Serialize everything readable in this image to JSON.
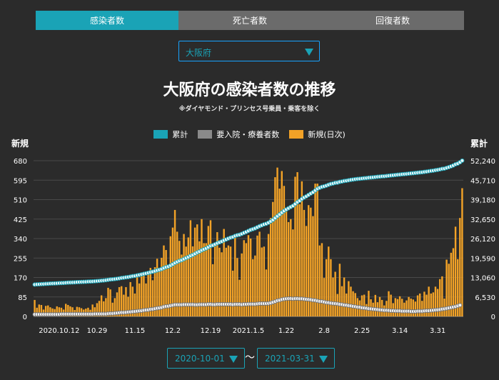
{
  "tabs": [
    {
      "label": "感染者数"
    },
    {
      "label": "死亡者数"
    },
    {
      "label": "回復者数"
    }
  ],
  "prefecture": {
    "selected": "大阪府"
  },
  "title": "大阪府の感染者数の推移",
  "subtitle": "※ダイヤモンド・プリンセス号乗員・乗客を除く",
  "legend": [
    {
      "label": "累計",
      "color": "#1aa3b6"
    },
    {
      "label": "要入院・療養者数",
      "color": "#8a8a8a"
    },
    {
      "label": "新規(日次)",
      "color": "#f2a227"
    }
  ],
  "left_axis_label": "新規",
  "right_axis_label": "累計",
  "date_range": {
    "start": "2020-10-01",
    "end": "2021-03-31",
    "separator": "〜"
  },
  "chart_data": {
    "type": "bar",
    "x_start": "2020-10-01",
    "x_end": "2021-03-31",
    "x_tick_labels": [
      "2020.10.12",
      "10.29",
      "11.15",
      "12.2",
      "12.19",
      "2021.1.5",
      "1.22",
      "2.8",
      "2.25",
      "3.14",
      "3.31"
    ],
    "y_left": {
      "label": "新規",
      "ticks": [
        "0",
        "85",
        "170",
        "255",
        "340",
        "425",
        "510",
        "595",
        "680"
      ],
      "range": [
        0,
        680
      ]
    },
    "y_right": {
      "label": "累計",
      "ticks": [
        "0",
        "6,530",
        "13,060",
        "19,590",
        "26,120",
        "32,650",
        "39,180",
        "45,710",
        "52,240"
      ],
      "range": [
        0,
        52240
      ]
    },
    "series": [
      {
        "name": "新規(日次)",
        "axis": "left",
        "type": "bar",
        "values": [
          72,
          38,
          52,
          50,
          30,
          46,
          48,
          40,
          35,
          32,
          44,
          40,
          38,
          30,
          55,
          50,
          44,
          40,
          28,
          42,
          40,
          36,
          30,
          34,
          38,
          29,
          52,
          40,
          58,
          68,
          92,
          66,
          80,
          125,
          118,
          60,
          80,
          105,
          128,
          132,
          95,
          128,
          86,
          150,
          130,
          100,
          175,
          144,
          185,
          180,
          144,
          195,
          212,
          158,
          215,
          252,
          200,
          256,
          310,
          290,
          220,
          350,
          388,
          465,
          370,
          330,
          270,
          360,
          305,
          345,
          420,
          306,
          388,
          402,
          328,
          425,
          320,
          320,
          395,
          420,
          228,
          320,
          368,
          300,
          280,
          382,
          300,
          310,
          305,
          200,
          358,
          255,
          160,
          275,
          333,
          320,
          355,
          340,
          250,
          266,
          353,
          370,
          301,
          305,
          205,
          360,
          430,
          500,
          608,
          650,
          558,
          635,
          570,
          475,
          412,
          425,
          380,
          610,
          630,
          490,
          590,
          465,
          395,
          486,
          475,
          438,
          580,
          580,
          310,
          320,
          168,
          250,
          305,
          250,
          170,
          195,
          98,
          230,
          132,
          170,
          100,
          154,
          130,
          110,
          102,
          80,
          70,
          92,
          95,
          54,
          112,
          75,
          60,
          94,
          62,
          85,
          72,
          48,
          68,
          110,
          95,
          58,
          80,
          76,
          88,
          77,
          60,
          70,
          85,
          78,
          74,
          65,
          92,
          100,
          68,
          108,
          95,
          130,
          100,
          105,
          130,
          120,
          163,
          175,
          78,
          248,
          230,
          278,
          298,
          392,
          250,
          430,
          560
        ]
      },
      {
        "name": "累計",
        "axis": "right",
        "type": "line",
        "values": [
          10700,
          10740,
          10780,
          10850,
          10880,
          10920,
          10970,
          11010,
          11050,
          11080,
          11120,
          11160,
          11200,
          11230,
          11290,
          11340,
          11380,
          11420,
          11450,
          11490,
          11530,
          11570,
          11600,
          11630,
          11670,
          11700,
          11750,
          11790,
          11850,
          11920,
          12010,
          12080,
          12160,
          12280,
          12400,
          12460,
          12540,
          12650,
          12770,
          12910,
          13000,
          13130,
          13220,
          13370,
          13500,
          13600,
          13780,
          13920,
          14110,
          14290,
          14430,
          14630,
          14840,
          15000,
          15210,
          15470,
          15670,
          15920,
          16230,
          16520,
          16740,
          17090,
          17480,
          17940,
          18310,
          18640,
          18910,
          19270,
          19580,
          19920,
          20340,
          20650,
          21040,
          21440,
          21770,
          22190,
          22510,
          22830,
          23230,
          23650,
          23880,
          24200,
          24570,
          24870,
          25150,
          25530,
          25830,
          26140,
          26450,
          26650,
          27010,
          27260,
          27420,
          27700,
          28030,
          28350,
          28710,
          29050,
          29300,
          29560,
          29920,
          30290,
          30590,
          30890,
          31100,
          31460,
          31890,
          32390,
          33000,
          33650,
          34210,
          34840,
          35410,
          35890,
          36300,
          36720,
          37100,
          37710,
          38340,
          38830,
          39420,
          39890,
          40280,
          40770,
          41240,
          41680,
          42260,
          42840,
          43150,
          43470,
          43640,
          43890,
          44190,
          44440,
          44610,
          44810,
          44900,
          45130,
          45270,
          45440,
          45540,
          45690,
          45820,
          45930,
          46040,
          46120,
          46190,
          46280,
          46380,
          46430,
          46540,
          46620,
          46680,
          46770,
          46840,
          46920,
          46990,
          47040,
          47110,
          47220,
          47310,
          47370,
          47450,
          47530,
          47610,
          47690,
          47750,
          47820,
          47910,
          47990,
          48060,
          48130,
          48220,
          48320,
          48390,
          48500,
          48590,
          48720,
          48820,
          48920,
          49050,
          49170,
          49340,
          49510,
          49590,
          49840,
          50070,
          50350,
          50650,
          51040,
          51290,
          51720,
          52280
        ]
      },
      {
        "name": "要入院・療養者数",
        "axis": "left",
        "type": "line",
        "values": [
          9,
          9,
          9,
          9,
          9,
          9,
          9,
          9,
          9,
          9,
          9,
          9,
          10,
          10,
          10,
          10,
          10,
          10,
          10,
          10,
          10,
          10,
          10,
          10,
          10,
          10,
          10,
          11,
          11,
          11,
          11,
          11,
          11,
          12,
          13,
          13,
          14,
          15,
          16,
          17,
          17,
          18,
          19,
          20,
          21,
          22,
          23,
          24,
          25,
          27,
          28,
          29,
          31,
          32,
          34,
          36,
          37,
          39,
          42,
          44,
          45,
          47,
          49,
          51,
          51,
          51,
          51,
          52,
          52,
          52,
          52,
          52,
          51,
          51,
          52,
          52,
          52,
          52,
          53,
          53,
          52,
          52,
          53,
          53,
          53,
          53,
          53,
          53,
          53,
          52,
          53,
          53,
          53,
          52,
          53,
          53,
          54,
          54,
          54,
          54,
          55,
          56,
          56,
          56,
          56,
          57,
          59,
          62,
          65,
          69,
          71,
          74,
          76,
          77,
          78,
          78,
          77,
          78,
          78,
          77,
          77,
          76,
          75,
          74,
          73,
          71,
          70,
          68,
          66,
          65,
          63,
          61,
          60,
          58,
          57,
          56,
          55,
          53,
          52,
          50,
          49,
          47,
          46,
          44,
          43,
          41,
          40,
          38,
          37,
          36,
          34,
          33,
          32,
          31,
          30,
          29,
          28,
          27,
          27,
          26,
          25,
          25,
          24,
          24,
          24,
          23,
          23,
          23,
          23,
          22,
          22,
          22,
          23,
          23,
          23,
          24,
          25,
          25,
          26,
          27,
          28,
          29,
          30,
          32,
          33,
          35,
          37,
          39,
          41,
          43,
          46,
          49
        ]
      }
    ]
  }
}
